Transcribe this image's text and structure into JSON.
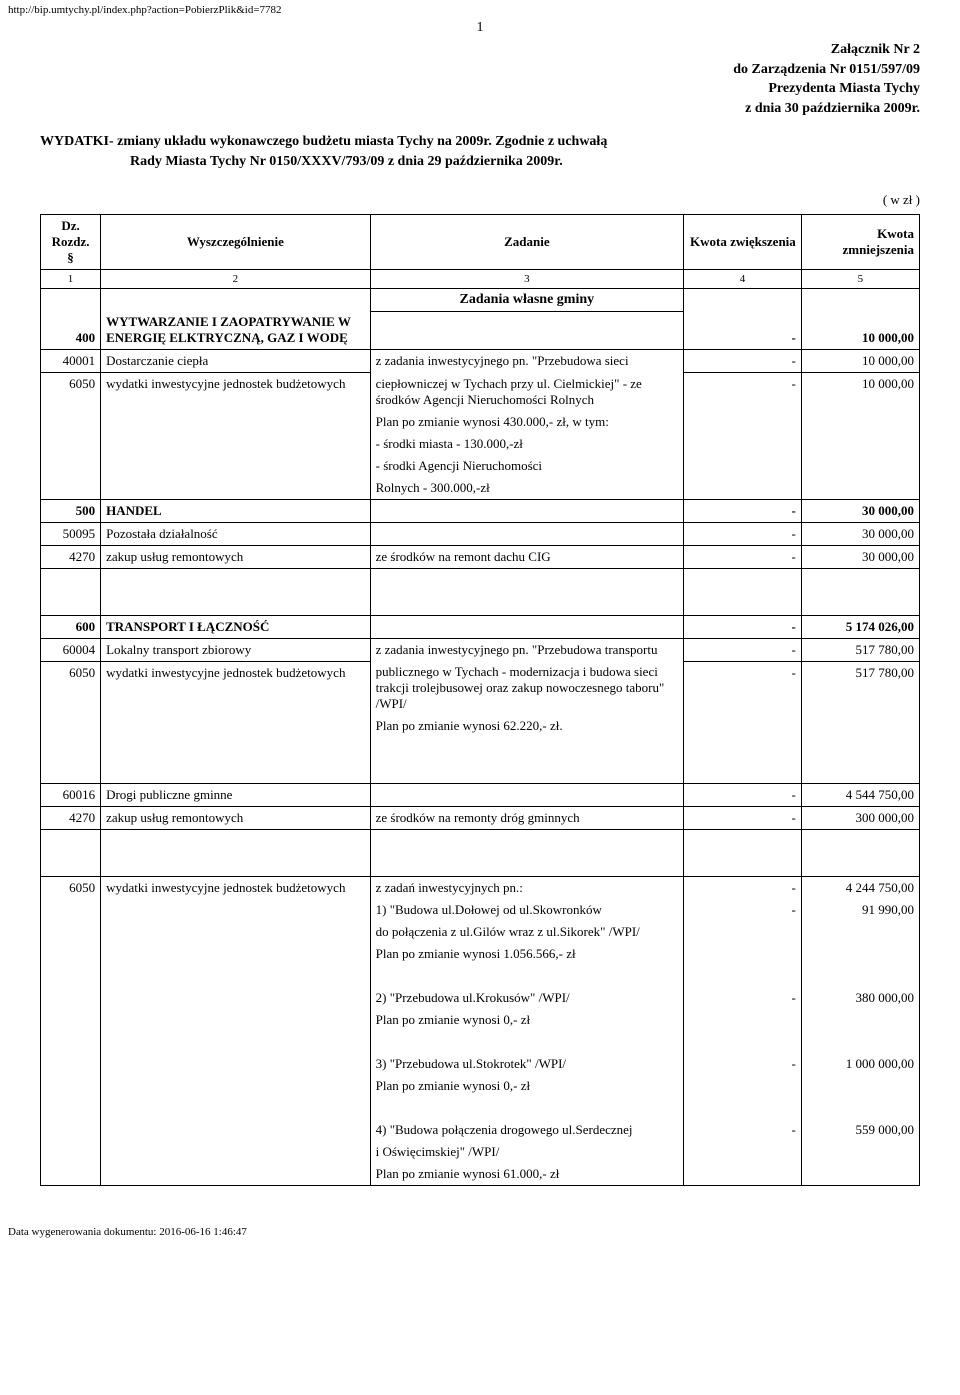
{
  "url": "http://bip.umtychy.pl/index.php?action=PobierzPlik&id=7782",
  "page_number": "1",
  "header": {
    "line1": "Załącznik Nr 2",
    "line2": "do Zarządzenia Nr 0151/597/09",
    "line3": "Prezydenta Miasta Tychy",
    "line4": "z dnia 30 października 2009r."
  },
  "title": {
    "line1": "WYDATKI- zmiany układu wykonawczego budżetu miasta Tychy na 2009r. Zgodnie z uchwałą",
    "line2": "Rady Miasta Tychy Nr 0150/XXXV/793/09 z dnia 29 października 2009r."
  },
  "currency_note": "( w zł )",
  "table_head": {
    "c1a": "Dz.",
    "c1b": "Rozdz.",
    "c1c": "§",
    "c2": "Wyszczególnienie",
    "c3": "Zadanie",
    "c4": "Kwota zwiększenia",
    "c5": "Kwota zmniejszenia"
  },
  "colnums": {
    "a": "1",
    "b": "2",
    "c": "3",
    "d": "4",
    "e": "5"
  },
  "section_own": "Zadania własne gminy",
  "rows": {
    "r400": {
      "code": "400",
      "name": "WYTWARZANIE I ZAOPATRYWANIE W ENERGIĘ ELKTRYCZNĄ, GAZ I WODĘ",
      "inc": "-",
      "dec": "10 000,00"
    },
    "r40001": {
      "code": "40001",
      "name": "Dostarczanie ciepła",
      "task": "z zadania inwestycyjnego pn. \"Przebudowa sieci",
      "inc": "-",
      "dec": "10 000,00"
    },
    "r6050a": {
      "code": "6050",
      "name": "wydatki inwestycyjne jednostek budżetowych",
      "task": "ciepłowniczej w Tychach przy ul. Cielmickiej\" - ze środków Agencji Nieruchomości Rolnych",
      "inc": "-",
      "dec": "10 000,00",
      "task2": "Plan po zmianie wynosi  430.000,- zł, w tym:",
      "task3": " - środki miasta - 130.000,-zł",
      "task4": " - środki Agencji Nieruchomości",
      "task5": "   Rolnych - 300.000,-zł"
    },
    "r500": {
      "code": "500",
      "name": "HANDEL",
      "inc": "-",
      "dec": "30 000,00"
    },
    "r50095": {
      "code": "50095",
      "name": "Pozostała działalność",
      "inc": "-",
      "dec": "30 000,00"
    },
    "r4270a": {
      "code": "4270",
      "name": "zakup usług remontowych",
      "task": "ze środków na remont dachu CIG",
      "inc": "-",
      "dec": "30 000,00"
    },
    "r600": {
      "code": "600",
      "name": "TRANSPORT I ŁĄCZNOŚĆ",
      "inc": "-",
      "dec": "5 174 026,00"
    },
    "r60004": {
      "code": "60004",
      "name": "Lokalny transport zbiorowy",
      "task": "z zadania inwestycyjnego pn. \"Przebudowa transportu",
      "inc": "-",
      "dec": "517 780,00"
    },
    "r6050b": {
      "code": "6050",
      "name": "wydatki inwestycyjne jednostek budżetowych",
      "task": "publicznego w Tychach - modernizacja i budowa sieci trakcji trolejbusowej oraz zakup nowoczesnego taboru\" /WPI/",
      "task2": "Plan po zmianie wynosi  62.220,- zł.",
      "inc": "-",
      "dec": "517 780,00"
    },
    "r60016": {
      "code": "60016",
      "name": "Drogi publiczne gminne",
      "inc": "-",
      "dec": "4 544 750,00"
    },
    "r4270b": {
      "code": "4270",
      "name": "zakup usług remontowych",
      "task": "ze środków na remonty dróg gminnych",
      "inc": "-",
      "dec": "300 000,00"
    },
    "r6050c": {
      "code": "6050",
      "name": "wydatki inwestycyjne jednostek budżetowych",
      "task": "z zadań inwestycyjnych pn.:",
      "inc": "-",
      "dec": "4 244 750,00",
      "i1": "1) \"Budowa ul.Dołowej od ul.Skowronków",
      "i1inc": "-",
      "i1dec": "91 990,00",
      "i1b": "    do połączenia z ul.Gilów wraz z ul.Sikorek\" /WPI/",
      "i1c": "Plan po zmianie wynosi  1.056.566,- zł",
      "i2": "2) \"Przebudowa ul.Krokusów\" /WPI/",
      "i2inc": "-",
      "i2dec": "380 000,00",
      "i2b": "Plan po zmianie wynosi  0,- zł",
      "i3": "3) \"Przebudowa ul.Stokrotek\" /WPI/",
      "i3inc": "-",
      "i3dec": "1 000 000,00",
      "i3b": "Plan po zmianie wynosi  0,- zł",
      "i4": "4) \"Budowa połączenia drogowego ul.Serdecznej",
      "i4inc": "-",
      "i4dec": "559 000,00",
      "i4b": "    i Oświęcimskiej\" /WPI/",
      "i4c": "Plan po zmianie wynosi  61.000,- zł"
    }
  },
  "footer": "Data wygenerowania dokumentu: 2016-06-16 1:46:47"
}
